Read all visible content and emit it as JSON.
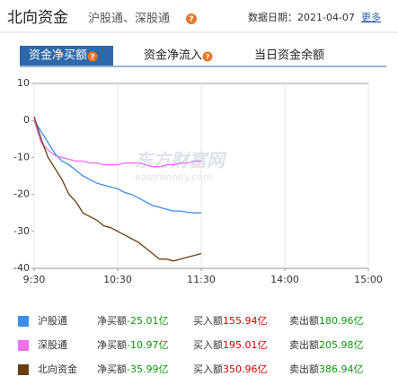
{
  "header": {
    "title": "北向资金",
    "subtitle": "沪股通、深股通",
    "help_icon": "?",
    "date_label": "数据日期：2021-04-07",
    "more_link": "更多"
  },
  "tabs": [
    {
      "label": "资金净买额",
      "help": true
    },
    {
      "label": "资金净流入",
      "help": true
    },
    {
      "label": "当日资金余额",
      "help": false
    }
  ],
  "watermark": {
    "name": "东方财富网",
    "url": "eastmoney.com"
  },
  "chart_data": {
    "type": "line",
    "x": [
      0,
      5,
      10,
      15,
      20,
      25,
      30,
      35,
      40,
      45,
      50,
      55,
      60,
      65,
      70,
      75,
      80,
      85,
      90,
      95,
      100,
      105,
      110,
      115,
      120
    ],
    "xlim": [
      0,
      240
    ],
    "xticks": [
      {
        "value": 0,
        "label": "9:30"
      },
      {
        "value": 60,
        "label": "10:30"
      },
      {
        "value": 120,
        "label": "11:30"
      },
      {
        "value": 180,
        "label": "14:00"
      },
      {
        "value": 240,
        "label": "15:00"
      }
    ],
    "ylim": [
      -40,
      10
    ],
    "yticks": [
      10,
      0,
      -10,
      -20,
      -30,
      -40
    ],
    "series": [
      {
        "name": "沪股通",
        "color": "#3b8fe8",
        "values": [
          0,
          -3,
          -6,
          -9,
          -11,
          -12,
          -13.5,
          -15,
          -16,
          -17,
          -17.5,
          -18,
          -18.5,
          -19.5,
          -20,
          -21,
          -22,
          -23,
          -23.5,
          -24,
          -24.5,
          -24.5,
          -24.8,
          -25,
          -25
        ]
      },
      {
        "name": "深股通",
        "color": "#ee6ef0",
        "values": [
          0,
          -6,
          -8,
          -9.5,
          -10,
          -10.5,
          -11,
          -11,
          -11.5,
          -11.5,
          -12,
          -12,
          -12,
          -11.5,
          -11.5,
          -11.5,
          -12,
          -12.5,
          -12.5,
          -12,
          -12,
          -11.5,
          -11.5,
          -11,
          -11
        ]
      },
      {
        "name": "北向资金",
        "color": "#6b3d0e",
        "values": [
          1,
          -5,
          -10,
          -13,
          -16,
          -20,
          -22,
          -25,
          -26,
          -27,
          -28.5,
          -29,
          -30,
          -31,
          -32,
          -33,
          -34.5,
          -36,
          -37.5,
          -37.5,
          -38,
          -37.5,
          -37,
          -36.5,
          -36
        ]
      }
    ]
  },
  "summary": [
    {
      "net": {
        "label": "净买额",
        "value": "-25.01亿"
      },
      "buy": {
        "label": "买入额",
        "value": "155.94亿"
      },
      "sell": {
        "label": "卖出额",
        "value": "180.96亿"
      }
    },
    {
      "net": {
        "label": "净买额",
        "value": "-10.97亿"
      },
      "buy": {
        "label": "买入额",
        "value": "195.01亿"
      },
      "sell": {
        "label": "卖出额",
        "value": "205.98亿"
      }
    },
    {
      "net": {
        "label": "净买额",
        "value": "-35.99亿"
      },
      "buy": {
        "label": "买入额",
        "value": "350.96亿"
      },
      "sell": {
        "label": "卖出额",
        "value": "386.94亿"
      }
    }
  ]
}
